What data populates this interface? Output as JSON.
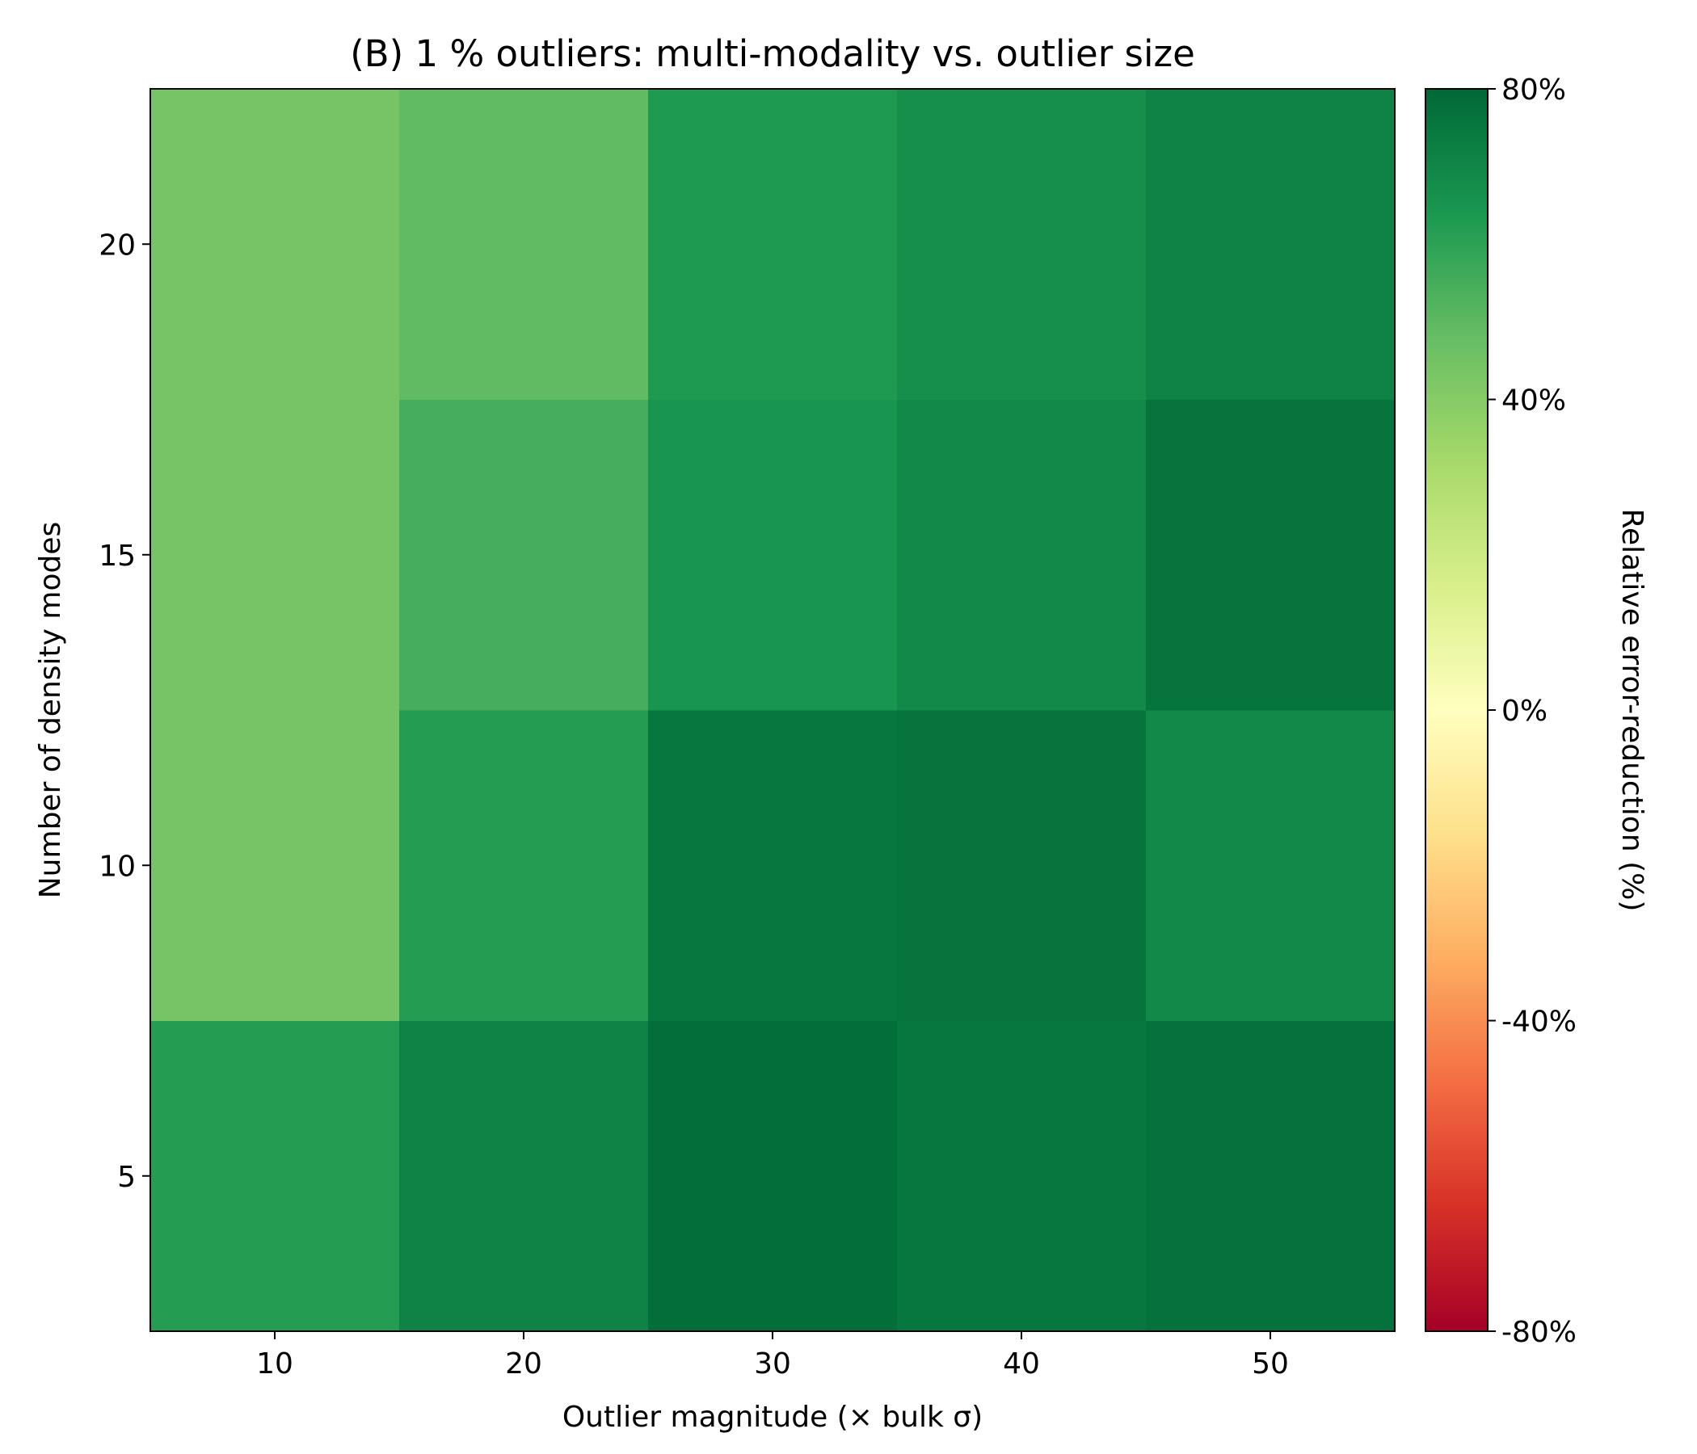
{
  "chart_data": {
    "type": "heatmap",
    "title": "(B)  1 % outliers: multi-modality vs. outlier size",
    "xlabel": "Outlier magnitude (× bulk σ)",
    "ylabel": "Number of density modes",
    "x": [
      10,
      20,
      30,
      40,
      50
    ],
    "y": [
      5,
      10,
      15,
      20
    ],
    "x_ticks": [
      "10",
      "20",
      "30",
      "40",
      "50"
    ],
    "y_ticks": [
      "5",
      "10",
      "15",
      "20"
    ],
    "values": [
      [
        62,
        71,
        78,
        75,
        77
      ],
      [
        44,
        62,
        75,
        76,
        69
      ],
      [
        44,
        55,
        65,
        69,
        76
      ],
      [
        44,
        49,
        63,
        67,
        71
      ]
    ],
    "colorbar": {
      "label": "Relative error-reduction (%)",
      "range": [
        -80,
        80
      ],
      "ticks": [
        "80%",
        "40%",
        "0%",
        "-40%",
        "-80%"
      ],
      "tick_values": [
        80,
        40,
        0,
        -40,
        -80
      ],
      "colormap": "RdYlGn",
      "stops": [
        "#a50026",
        "#d73027",
        "#f46d43",
        "#fdae61",
        "#fee08b",
        "#ffffbf",
        "#d9ef8b",
        "#a6d96a",
        "#66bd63",
        "#1a9850",
        "#006837"
      ]
    }
  }
}
